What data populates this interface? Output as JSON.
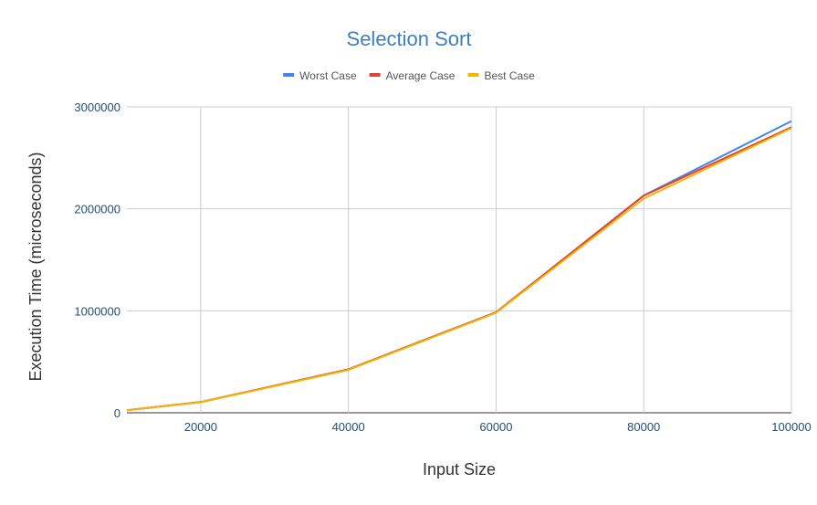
{
  "chart_data": {
    "type": "line",
    "title": "Selection Sort",
    "xlabel": "Input Size",
    "ylabel": "Execution Time (microseconds)",
    "x": [
      10000,
      20000,
      40000,
      60000,
      80000,
      100000
    ],
    "xlim": [
      10000,
      100000
    ],
    "ylim": [
      0,
      3000000
    ],
    "x_ticks": [
      "20000",
      "40000",
      "60000",
      "80000",
      "100000"
    ],
    "y_ticks": [
      "0",
      "1000000",
      "2000000",
      "3000000"
    ],
    "grid": true,
    "legend_position": "top",
    "series": [
      {
        "name": "Worst Case",
        "color": "#4285f4",
        "values": [
          25000,
          105000,
          425000,
          985000,
          2130000,
          2860000
        ]
      },
      {
        "name": "Average Case",
        "color": "#db4437",
        "values": [
          25000,
          105000,
          425000,
          985000,
          2130000,
          2800000
        ]
      },
      {
        "name": "Best Case",
        "color": "#f4b400",
        "values": [
          25000,
          103000,
          420000,
          980000,
          2100000,
          2790000
        ]
      }
    ]
  }
}
